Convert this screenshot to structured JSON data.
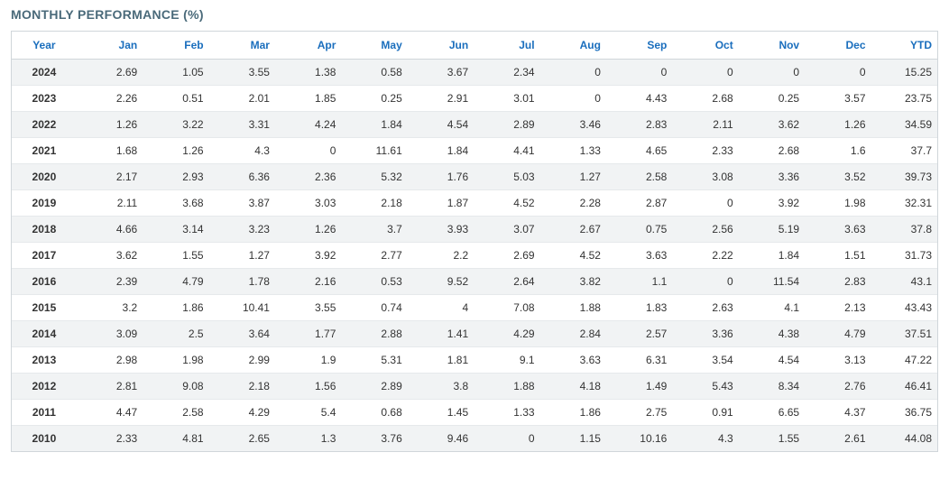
{
  "title": "MONTHLY PERFORMANCE (%)",
  "table": {
    "columns": [
      "Year",
      "Jan",
      "Feb",
      "Mar",
      "Apr",
      "May",
      "Jun",
      "Jul",
      "Aug",
      "Sep",
      "Oct",
      "Nov",
      "Dec",
      "YTD"
    ],
    "rows": [
      [
        "2024",
        "2.69",
        "1.05",
        "3.55",
        "1.38",
        "0.58",
        "3.67",
        "2.34",
        "0",
        "0",
        "0",
        "0",
        "0",
        "15.25"
      ],
      [
        "2023",
        "2.26",
        "0.51",
        "2.01",
        "1.85",
        "0.25",
        "2.91",
        "3.01",
        "0",
        "4.43",
        "2.68",
        "0.25",
        "3.57",
        "23.75"
      ],
      [
        "2022",
        "1.26",
        "3.22",
        "3.31",
        "4.24",
        "1.84",
        "4.54",
        "2.89",
        "3.46",
        "2.83",
        "2.11",
        "3.62",
        "1.26",
        "34.59"
      ],
      [
        "2021",
        "1.68",
        "1.26",
        "4.3",
        "0",
        "11.61",
        "1.84",
        "4.41",
        "1.33",
        "4.65",
        "2.33",
        "2.68",
        "1.6",
        "37.7"
      ],
      [
        "2020",
        "2.17",
        "2.93",
        "6.36",
        "2.36",
        "5.32",
        "1.76",
        "5.03",
        "1.27",
        "2.58",
        "3.08",
        "3.36",
        "3.52",
        "39.73"
      ],
      [
        "2019",
        "2.11",
        "3.68",
        "3.87",
        "3.03",
        "2.18",
        "1.87",
        "4.52",
        "2.28",
        "2.87",
        "0",
        "3.92",
        "1.98",
        "32.31"
      ],
      [
        "2018",
        "4.66",
        "3.14",
        "3.23",
        "1.26",
        "3.7",
        "3.93",
        "3.07",
        "2.67",
        "0.75",
        "2.56",
        "5.19",
        "3.63",
        "37.8"
      ],
      [
        "2017",
        "3.62",
        "1.55",
        "1.27",
        "3.92",
        "2.77",
        "2.2",
        "2.69",
        "4.52",
        "3.63",
        "2.22",
        "1.84",
        "1.51",
        "31.73"
      ],
      [
        "2016",
        "2.39",
        "4.79",
        "1.78",
        "2.16",
        "0.53",
        "9.52",
        "2.64",
        "3.82",
        "1.1",
        "0",
        "11.54",
        "2.83",
        "43.1"
      ],
      [
        "2015",
        "3.2",
        "1.86",
        "10.41",
        "3.55",
        "0.74",
        "4",
        "7.08",
        "1.88",
        "1.83",
        "2.63",
        "4.1",
        "2.13",
        "43.43"
      ],
      [
        "2014",
        "3.09",
        "2.5",
        "3.64",
        "1.77",
        "2.88",
        "1.41",
        "4.29",
        "2.84",
        "2.57",
        "3.36",
        "4.38",
        "4.79",
        "37.51"
      ],
      [
        "2013",
        "2.98",
        "1.98",
        "2.99",
        "1.9",
        "5.31",
        "1.81",
        "9.1",
        "3.63",
        "6.31",
        "3.54",
        "4.54",
        "3.13",
        "47.22"
      ],
      [
        "2012",
        "2.81",
        "9.08",
        "2.18",
        "1.56",
        "2.89",
        "3.8",
        "1.88",
        "4.18",
        "1.49",
        "5.43",
        "8.34",
        "2.76",
        "46.41"
      ],
      [
        "2011",
        "4.47",
        "2.58",
        "4.29",
        "5.4",
        "0.68",
        "1.45",
        "1.33",
        "1.86",
        "2.75",
        "0.91",
        "6.65",
        "4.37",
        "36.75"
      ],
      [
        "2010",
        "2.33",
        "4.81",
        "2.65",
        "1.3",
        "3.76",
        "9.46",
        "0",
        "1.15",
        "10.16",
        "4.3",
        "1.55",
        "2.61",
        "44.08"
      ]
    ],
    "header_color": "#1a6ebd",
    "text_color": "#333333",
    "title_color": "#4a6a7a",
    "stripe_color": "#f1f3f4",
    "background_color": "#ffffff",
    "border_color": "#d0d6da",
    "row_border_color": "#e6e9eb",
    "font_size_header": 12,
    "font_size_cell": 12,
    "font_size_title": 14
  }
}
